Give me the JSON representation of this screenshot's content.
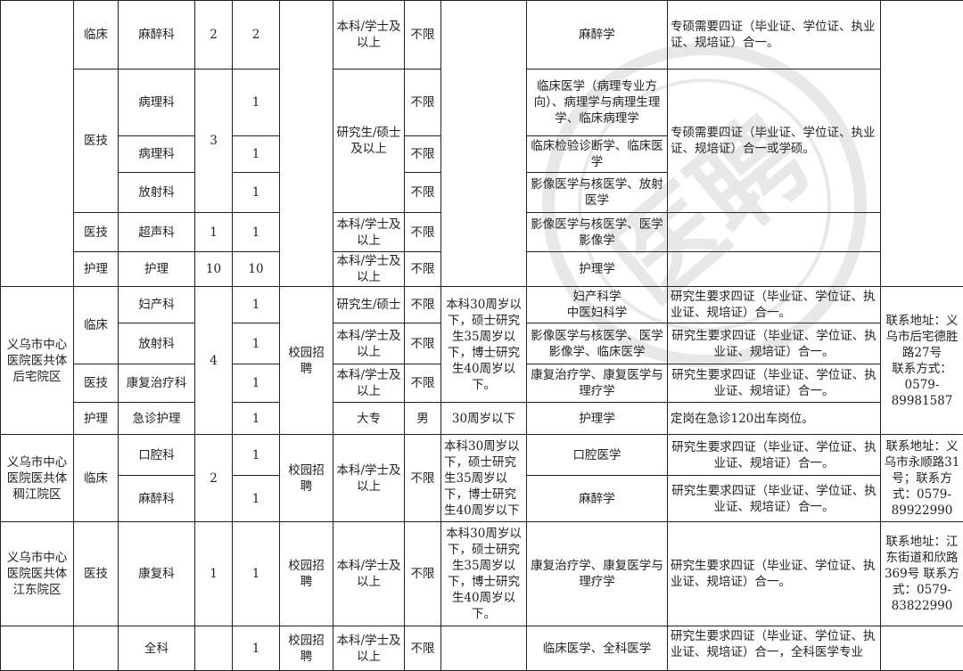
{
  "watermark": "医聘",
  "s0": {
    "r0": {
      "cat": "临床",
      "dept": "麻醉科",
      "plan": "2",
      "num": "2",
      "edu": "本科/学士及以上",
      "gender": "不限",
      "major": "麻醉学",
      "note": "专硕需要四证（毕业证、学位证、执业证、规培证）合一。"
    },
    "r1": {
      "cat": "医技",
      "dept": "病理科",
      "plan": "3",
      "num": "1",
      "edu": "研究生/硕士及以上",
      "gender": "不限",
      "major": "临床医学（病理专业方向）、病理学与病理生理学、临床病理学",
      "note": "专硕需要四证（毕业证、学位证、执业证、规培证）合一或学硕。"
    },
    "r2": {
      "dept": "病理科",
      "num": "1",
      "gender": "不限",
      "major": "临床检验诊断学、临床医学"
    },
    "r3": {
      "dept": "放射科",
      "num": "1",
      "gender": "不限",
      "major": "影像医学与核医学、放射医学"
    },
    "r4": {
      "cat": "医技",
      "dept": "超声科",
      "plan": "1",
      "num": "1",
      "edu": "本科/学士及以上",
      "gender": "不限",
      "major": "影像医学与核医学、医学影像学"
    },
    "r5": {
      "cat": "护理",
      "dept": "护理",
      "plan": "10",
      "num": "10",
      "edu": "本科/学士及以上",
      "gender": "不限",
      "major": "护理学"
    }
  },
  "s1": {
    "unit": "义乌市中心医院医共体后宅院区",
    "plan": "4",
    "method": "校园招聘",
    "age": "本科30周岁以下，硕士研究生35周岁以下，博士研究生40周岁以下。",
    "contact": "联系地址：义乌市后宅德胜路27号\n联系方式：0579-89981587",
    "rows": [
      {
        "cat": "临床",
        "dept": "妇产科",
        "num": "1",
        "edu": "研究生/硕士",
        "gender": "不限",
        "major": "妇产科学\n中医妇科学",
        "note": "研究生要求四证（毕业证、学位证、执业证、规培证）合一。"
      },
      {
        "dept": "放射科",
        "num": "1",
        "edu": "本科/学士及以上",
        "gender": "不限",
        "major": "影像医学与核医学、医学影像学、临床医学",
        "note": "研究生要求四证（毕业证、学位证、执业证、规培证）合一。"
      },
      {
        "cat": "医技",
        "dept": "康复治疗科",
        "num": "1",
        "edu": "本科/学士及以上",
        "gender": "不限",
        "major": "康复治疗学、康复医学与理疗学",
        "note": "研究生要求四证（毕业证、学位证、执业证、规培证）合一。"
      },
      {
        "cat": "护理",
        "dept": "急诊护理",
        "num": "1",
        "edu": "大专",
        "gender": "男",
        "age": "30周岁以下",
        "major": "护理学",
        "note": "定岗在急诊120出车岗位。"
      }
    ]
  },
  "s2": {
    "unit": "义乌市中心医院医共体稠江院区",
    "cat": "临床",
    "plan": "2",
    "method": "校园招聘",
    "edu": "本科/学士及以上",
    "gender": "不限",
    "age": "本科30周岁以下，硕士研究生35周岁以下，博士研究生40周岁以下",
    "contact": "联系地址：义乌市永顺路31号；联系方式：0579-89922990",
    "rows": [
      {
        "dept": "口腔科",
        "num": "1",
        "major": "口腔医学",
        "note": "研究生要求四证（毕业证、学位证、执业证、规培证）合一。"
      },
      {
        "dept": "麻醉科",
        "num": "1",
        "major": "麻醉学",
        "note": "研究生要求四证（毕业证、学位证、执业证、规培证）合一。"
      }
    ]
  },
  "s3": {
    "unit": "义乌市中心医院医共体江东院区",
    "cat": "医技",
    "dept": "康复科",
    "plan": "1",
    "num": "1",
    "method": "校园招聘",
    "edu": "本科/学士及以上",
    "gender": "不限",
    "age": "本科30周岁以下，硕士研究生35周岁以下，博士研究生40周岁以下。",
    "major": "康复治疗学、康复医学与理疗学",
    "note": "研究生要求四证（毕业证、学位证、执业证、规培证）合一。",
    "contact": "联系地址：江东街道和欣路369号 联系方式：0579-83822990"
  },
  "s4": {
    "dept": "全科",
    "num": "1",
    "method": "校园招聘",
    "edu": "本科/学士及以上",
    "gender": "不限",
    "major": "临床医学、全科医学",
    "note": "研究生要求四证（毕业证、学位证、执业证、规培证）合一，全科医学专业"
  }
}
